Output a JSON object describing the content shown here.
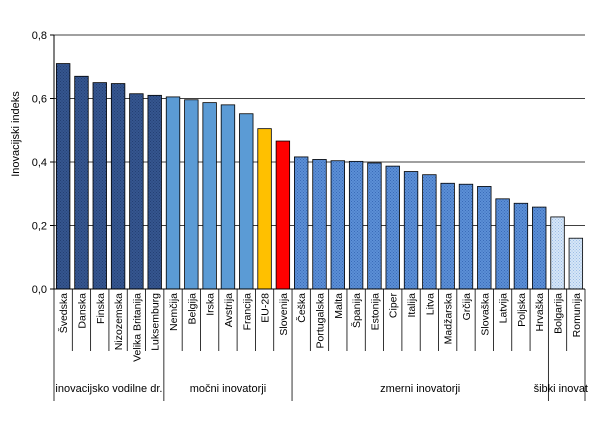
{
  "chart_data": {
    "type": "bar",
    "ylabel": "Inovacijski indeks",
    "xlabel": "",
    "ylim": [
      0,
      0.8
    ],
    "yticks": [
      "0,0",
      "0,2",
      "0,4",
      "0,6",
      "0,8"
    ],
    "grid": true,
    "categories": [
      "Švedska",
      "Danska",
      "Finska",
      "Nizozemska",
      "Velika Britanija",
      "Luksemburg",
      "Nemčija",
      "Belgija",
      "Irska",
      "Avstrija",
      "Francija",
      "EU-28",
      "Slovenija",
      "Češka",
      "Portugalska",
      "Malta",
      "Španija",
      "Estonija",
      "Ciper",
      "Italija",
      "Litva",
      "Madžarska",
      "Grčija",
      "Slovaška",
      "Latvija",
      "Poljska",
      "Hrvaška",
      "Bolgarija",
      "Romunija"
    ],
    "values": [
      0.71,
      0.67,
      0.65,
      0.647,
      0.615,
      0.61,
      0.605,
      0.596,
      0.587,
      0.58,
      0.552,
      0.505,
      0.466,
      0.416,
      0.408,
      0.404,
      0.402,
      0.397,
      0.387,
      0.37,
      0.36,
      0.333,
      0.33,
      0.323,
      0.284,
      0.27,
      0.258,
      0.227,
      0.16
    ],
    "groups": [
      {
        "name": "inovacijsko vodilne dr.",
        "start": 0,
        "end": 5
      },
      {
        "name": "močni inovatorji",
        "start": 6,
        "end": 12
      },
      {
        "name": "zmerni inovatorji",
        "start": 13,
        "end": 26
      },
      {
        "name": "šibki inovat",
        "start": 27,
        "end": 28
      }
    ],
    "colors": {
      "leaders": "#2e4f8f",
      "strong": "#5b9bd5",
      "eu": "#ffc000",
      "slovenia": "#ff0000",
      "moderate": "#4a86d0",
      "modest": "#c6dbf2"
    }
  }
}
